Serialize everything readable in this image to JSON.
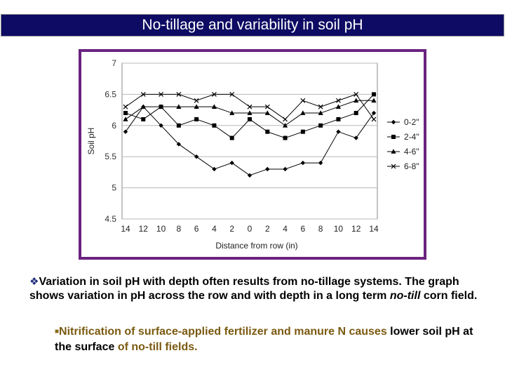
{
  "slide": {
    "title": "No-tillage and variability in soil pH",
    "bullet_main_part1": "Variation in soil pH with depth often results from no-tillage systems. The graph shows variation in pH across the row and with depth in a long term ",
    "bullet_main_italic": "no-till",
    "bullet_main_part2": " corn field.",
    "sub_part1": "Nitrification of surface-applied fertilizer and manure N causes",
    "sub_part2": " lower soil pH at the surface ",
    "sub_part3": "of no-till fields.",
    "colors": {
      "title_bg": "#0d0b63",
      "frame": "#6a2280",
      "olive_text": "#7a5a10"
    }
  },
  "chart_data": {
    "type": "line",
    "categories": [
      "14",
      "12",
      "10",
      "8",
      "6",
      "4",
      "2",
      "0",
      "2",
      "4",
      "6",
      "8",
      "10",
      "12",
      "14"
    ],
    "xlabel": "Distance from row (in)",
    "ylabel": "Soil pH",
    "ylim": [
      4.5,
      7
    ],
    "yticks": [
      "7",
      "6.5",
      "6",
      "5.5",
      "5",
      "4.5"
    ],
    "grid": "horizontal",
    "legend_position": "right",
    "series": [
      {
        "name": "0-2\"",
        "marker": "diamond",
        "values": [
          5.9,
          6.3,
          6.0,
          5.7,
          5.5,
          5.3,
          5.4,
          5.2,
          5.3,
          5.3,
          5.4,
          5.4,
          5.9,
          5.8,
          6.2
        ]
      },
      {
        "name": "2-4\"",
        "marker": "square",
        "values": [
          6.2,
          6.1,
          6.3,
          6.0,
          6.1,
          6.0,
          5.8,
          6.1,
          5.9,
          5.8,
          5.9,
          6.0,
          6.1,
          6.2,
          6.5
        ]
      },
      {
        "name": "4-6\"",
        "marker": "triangle",
        "values": [
          6.1,
          6.3,
          6.3,
          6.3,
          6.3,
          6.3,
          6.2,
          6.2,
          6.2,
          6.0,
          6.2,
          6.2,
          6.3,
          6.4,
          6.4
        ]
      },
      {
        "name": "6-8\"",
        "marker": "x",
        "values": [
          6.3,
          6.5,
          6.5,
          6.5,
          6.4,
          6.5,
          6.5,
          6.3,
          6.3,
          6.1,
          6.4,
          6.3,
          6.4,
          6.5,
          6.1
        ]
      }
    ]
  }
}
